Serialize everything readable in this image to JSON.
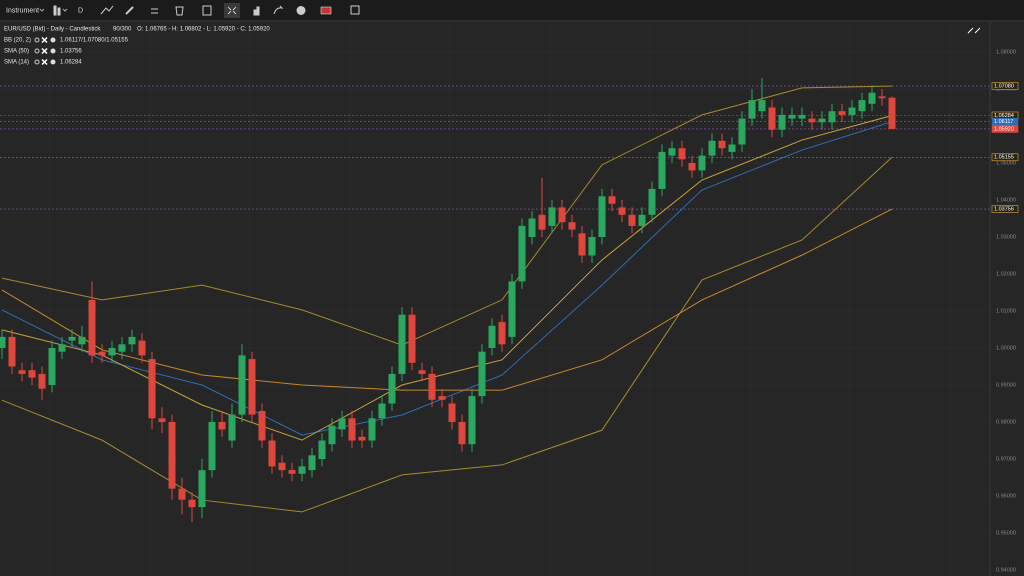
{
  "toolbar": {
    "instrument": "Instrument",
    "period": "D"
  },
  "legend": {
    "title": "EUR/USD (Bid) - Daily - Candlestick",
    "count": "90/300",
    "ohlc": "O: 1.06765 - H: 1.06802 - L: 1.05920 - C: 1.05920",
    "indicators": [
      {
        "name": "BB (20, 2)",
        "value": "1.06117/1.07080/1.05155"
      },
      {
        "name": "SMA (50)",
        "value": "1.03756"
      },
      {
        "name": "SMA (14)",
        "value": "1.06284"
      }
    ]
  },
  "chart_data": {
    "type": "candlestick",
    "up_color": "#2aa860",
    "down_color": "#e0473c",
    "open": [
      1.0,
      1.003,
      0.994,
      0.994,
      0.993,
      0.99,
      0.999,
      1.002,
      1.001,
      1.013,
      0.999,
      0.998,
      0.999,
      1.001,
      1.002,
      0.997,
      0.981,
      0.98,
      0.962,
      0.959,
      0.957,
      0.967,
      0.98,
      0.975,
      0.982,
      0.997,
      0.983,
      0.975,
      0.969,
      0.967,
      0.966,
      0.967,
      0.97,
      0.974,
      0.978,
      0.981,
      0.976,
      0.975,
      0.981,
      0.985,
      0.993,
      1.009,
      0.994,
      0.993,
      0.987,
      0.985,
      0.98,
      0.974,
      0.987,
      1.0,
      1.007,
      1.003,
      1.018,
      1.03,
      1.036,
      1.033,
      1.038,
      1.034,
      1.031,
      1.025,
      1.03,
      1.041,
      1.038,
      1.036,
      1.033,
      1.036,
      1.043,
      1.052,
      1.054,
      1.05,
      1.048,
      1.052,
      1.056,
      1.053,
      1.055,
      1.062,
      1.064,
      1.065,
      1.059,
      1.062,
      1.062,
      1.062,
      1.061,
      1.061,
      1.064,
      1.063,
      1.064,
      1.066,
      1.068,
      1.06765
    ],
    "high": [
      1.005,
      1.005,
      0.996,
      0.996,
      0.995,
      1.002,
      1.003,
      1.005,
      1.006,
      1.018,
      1.001,
      1.002,
      1.003,
      1.005,
      1.004,
      0.999,
      0.984,
      0.982,
      0.965,
      0.961,
      0.97,
      0.983,
      0.983,
      0.985,
      1.001,
      0.999,
      0.985,
      0.977,
      0.971,
      0.969,
      0.97,
      0.973,
      0.977,
      0.981,
      0.983,
      0.983,
      0.978,
      0.983,
      0.987,
      0.995,
      1.011,
      1.011,
      0.996,
      0.995,
      0.989,
      0.987,
      0.982,
      0.989,
      1.001,
      1.008,
      1.009,
      1.02,
      1.035,
      1.037,
      1.046,
      1.04,
      1.04,
      1.036,
      1.033,
      1.032,
      1.043,
      1.043,
      1.04,
      1.038,
      1.038,
      1.045,
      1.055,
      1.056,
      1.056,
      1.052,
      1.054,
      1.058,
      1.058,
      1.057,
      1.064,
      1.07,
      1.073,
      1.067,
      1.065,
      1.065,
      1.065,
      1.064,
      1.064,
      1.066,
      1.066,
      1.067,
      1.069,
      1.071,
      1.07,
      1.06802
    ],
    "low": [
      0.997,
      0.993,
      0.991,
      0.99,
      0.986,
      0.988,
      0.997,
      1.0,
      0.999,
      0.996,
      0.996,
      0.996,
      0.997,
      0.999,
      0.996,
      0.978,
      0.977,
      0.959,
      0.955,
      0.953,
      0.954,
      0.965,
      0.976,
      0.973,
      0.98,
      0.98,
      0.973,
      0.966,
      0.965,
      0.964,
      0.964,
      0.965,
      0.968,
      0.972,
      0.976,
      0.973,
      0.973,
      0.973,
      0.979,
      0.983,
      0.991,
      0.994,
      0.991,
      0.984,
      0.984,
      0.978,
      0.972,
      0.972,
      0.985,
      0.998,
      0.999,
      1.001,
      1.016,
      1.028,
      1.03,
      1.031,
      1.032,
      1.03,
      1.023,
      1.023,
      1.028,
      1.037,
      1.034,
      1.031,
      1.031,
      1.034,
      1.041,
      1.05,
      1.049,
      1.046,
      1.046,
      1.05,
      1.052,
      1.051,
      1.053,
      1.06,
      1.062,
      1.057,
      1.057,
      1.06,
      1.06,
      1.059,
      1.059,
      1.059,
      1.061,
      1.061,
      1.062,
      1.064,
      1.0655,
      1.0592
    ],
    "close": [
      1.003,
      0.995,
      0.993,
      0.992,
      0.989,
      1.0,
      1.001,
      1.003,
      1.003,
      0.998,
      0.998,
      1.0,
      1.001,
      1.003,
      0.998,
      0.981,
      0.98,
      0.962,
      0.959,
      0.957,
      0.967,
      0.98,
      0.978,
      0.982,
      0.998,
      0.982,
      0.975,
      0.968,
      0.967,
      0.966,
      0.968,
      0.971,
      0.975,
      0.979,
      0.981,
      0.975,
      0.975,
      0.981,
      0.985,
      0.993,
      1.009,
      0.996,
      0.993,
      0.986,
      0.986,
      0.98,
      0.974,
      0.987,
      0.999,
      1.006,
      1.001,
      1.018,
      1.033,
      1.035,
      1.032,
      1.038,
      1.034,
      1.032,
      1.025,
      1.03,
      1.041,
      1.039,
      1.036,
      1.033,
      1.036,
      1.043,
      1.053,
      1.054,
      1.051,
      1.048,
      1.052,
      1.056,
      1.054,
      1.055,
      1.062,
      1.067,
      1.067,
      1.059,
      1.063,
      1.063,
      1.063,
      1.061,
      1.062,
      1.064,
      1.063,
      1.065,
      1.067,
      1.069,
      1.0675,
      1.0592
    ],
    "series": [
      {
        "color": "#a8892e",
        "x": [
          0,
          10,
          20,
          30,
          40,
          50,
          60,
          70,
          80,
          89
        ],
        "values": [
          1.0189,
          1.013,
          1.017,
          1.0103,
          1.0008,
          1.013,
          1.0495,
          1.063,
          1.0703,
          1.0708
        ]
      },
      {
        "color": "#a8892e",
        "x": [
          0,
          10,
          20,
          30,
          40,
          50,
          60,
          70,
          80,
          89
        ],
        "values": [
          0.9859,
          0.9751,
          0.9589,
          0.9557,
          0.9657,
          0.9684,
          0.9778,
          1.0184,
          1.0292,
          1.05155
        ]
      },
      {
        "color": "#2f6db5",
        "x": [
          0,
          10,
          20,
          30,
          40,
          50,
          60,
          70,
          80,
          89
        ],
        "values": [
          1.0103,
          0.9968,
          0.99,
          0.9765,
          0.9819,
          0.9927,
          1.017,
          1.0427,
          1.0535,
          1.06117
        ]
      },
      {
        "color": "#c9a23a",
        "x": [
          0,
          10,
          20,
          30,
          40,
          50,
          60,
          70,
          80,
          89
        ],
        "values": [
          1.0049,
          0.9981,
          0.9846,
          0.9751,
          0.99,
          0.9968,
          1.0238,
          1.0454,
          1.0562,
          1.06284
        ]
      },
      {
        "color": "#c8882a",
        "x": [
          0,
          10,
          20,
          30,
          40,
          50,
          60,
          70,
          80,
          89
        ],
        "values": [
          1.0157,
          0.9995,
          0.9927,
          0.99,
          0.9886,
          0.9886,
          0.9968,
          1.013,
          1.0251,
          1.03756
        ]
      }
    ],
    "price_lines": [
      {
        "value": 1.0708,
        "label": "1.07080",
        "color": "#e0a73a"
      },
      {
        "value": 1.06284,
        "label": "1.06284",
        "color": "#e0a73a"
      },
      {
        "value": 1.06117,
        "label": "1.06117",
        "color": "#2f6db5"
      },
      {
        "value": 1.0592,
        "label": "1.05920",
        "color": "#e0473c"
      },
      {
        "value": 1.05155,
        "label": "1.05155",
        "color": "#e0a73a"
      },
      {
        "value": 1.03756,
        "label": "1.03756",
        "color": "#e0a73a"
      }
    ],
    "ylim": [
      0.93838,
      1.08811
    ],
    "yticks": [
      {
        "value": 0.94,
        "label": "0.94000"
      },
      {
        "value": 0.95,
        "label": "0.95000"
      },
      {
        "value": 0.96,
        "label": "0.96000"
      },
      {
        "value": 0.97,
        "label": "0.97000"
      },
      {
        "value": 0.98,
        "label": "0.98000"
      },
      {
        "value": 0.99,
        "label": "0.99000"
      },
      {
        "value": 1.0,
        "label": "1.00000"
      },
      {
        "value": 1.01,
        "label": "1.01000"
      },
      {
        "value": 1.02,
        "label": "1.02000"
      },
      {
        "value": 1.03,
        "label": "1.03000"
      },
      {
        "value": 1.04,
        "label": "1.04000"
      },
      {
        "value": 1.05,
        "label": "1.05000"
      },
      {
        "value": 1.06,
        "label": "1.06000"
      },
      {
        "value": 1.07,
        "label": "1.07000"
      },
      {
        "value": 1.08,
        "label": "1.08000"
      }
    ],
    "grid": true
  }
}
